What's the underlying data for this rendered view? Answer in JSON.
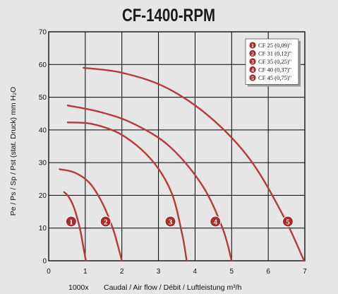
{
  "chart_data": {
    "type": "line",
    "title": "CF-1400-RPM",
    "xlabel": "Caudal / Air flow / Débit / Luftleistung m³/h",
    "xlabel_multiplier": "1000x",
    "ylabel": "Pe / Ps / Sp / Pst (stat. Druck) mm H₂O",
    "xlim": [
      0,
      7
    ],
    "ylim": [
      0,
      70
    ],
    "x_ticks": [
      0,
      1,
      2,
      3,
      4,
      5,
      6,
      7
    ],
    "y_ticks": [
      0,
      10,
      20,
      30,
      40,
      50,
      60,
      70
    ],
    "grid": true,
    "legend_position": "top-right",
    "colors": {
      "curve": "#b83a3a",
      "badge": "#a82a2a",
      "grid": "#000000",
      "plot_background": "#e6e6e6",
      "legend_background": "#ffffff"
    },
    "series": [
      {
        "name": "CF 25 (0,09)\"",
        "marker": "1",
        "x": [
          0.42,
          0.55,
          0.7,
          0.85,
          0.95,
          1.0,
          1.02
        ],
        "y": [
          21,
          19.5,
          16,
          10,
          4,
          1,
          0
        ]
      },
      {
        "name": "CF 31 (0,12)\"",
        "marker": "2",
        "x": [
          0.3,
          0.7,
          1.1,
          1.45,
          1.75,
          1.93,
          2.0
        ],
        "y": [
          28,
          27,
          24,
          18,
          10,
          3,
          0
        ]
      },
      {
        "name": "CF 35 (0,25)\"",
        "marker": "3",
        "x": [
          0.52,
          1.2,
          2.0,
          2.8,
          3.35,
          3.65,
          3.77
        ],
        "y": [
          42.3,
          41.8,
          38.5,
          31,
          21,
          8,
          0
        ]
      },
      {
        "name": "CF 40 (0,37)\"",
        "marker": "4",
        "x": [
          0.52,
          1.4,
          2.3,
          3.3,
          4.2,
          4.75,
          5.0
        ],
        "y": [
          47.5,
          45.5,
          42,
          35,
          23,
          10,
          0
        ]
      },
      {
        "name": "CF 45 (0,75)\"",
        "marker": "5",
        "x": [
          0.95,
          2.0,
          3.2,
          4.4,
          5.5,
          6.4,
          6.98
        ],
        "y": [
          59,
          57.5,
          53,
          44,
          31,
          14,
          0
        ]
      }
    ]
  }
}
